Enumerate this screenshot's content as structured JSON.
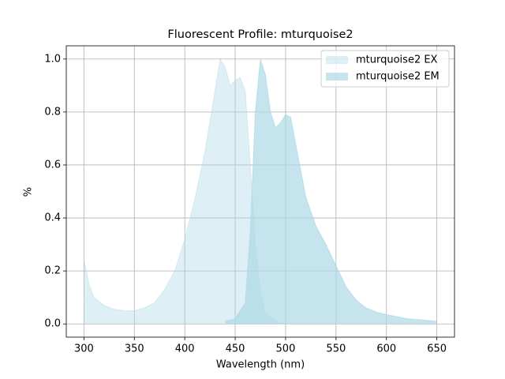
{
  "chart_data": {
    "type": "area",
    "title": "Fluorescent Profile: mturquoise2",
    "x_label": "Wavelength (nm)",
    "y_label": "%",
    "xlim": [
      282.5,
      667.5
    ],
    "ylim": [
      -0.05,
      1.05
    ],
    "xticks": [
      300,
      350,
      400,
      450,
      500,
      550,
      600,
      650
    ],
    "yticks": [
      {
        "value": 0,
        "label": "0.0"
      },
      0.2,
      0.4,
      0.6,
      0.8,
      {
        "value": 1,
        "label": "1.0"
      }
    ],
    "grid": true,
    "legend": "upper right",
    "series": [
      {
        "name": "mturquoise2 EX",
        "color": "#add8e6",
        "opacity": 0.4,
        "x": [
          300,
          305,
          310,
          320,
          330,
          340,
          350,
          360,
          370,
          380,
          390,
          400,
          410,
          420,
          430,
          435,
          440,
          445,
          450,
          455,
          460,
          465,
          470,
          475,
          480,
          490,
          500
        ],
        "values": [
          0.24,
          0.15,
          0.1,
          0.07,
          0.055,
          0.05,
          0.05,
          0.06,
          0.08,
          0.13,
          0.2,
          0.32,
          0.47,
          0.65,
          0.88,
          1.0,
          0.97,
          0.9,
          0.92,
          0.93,
          0.88,
          0.6,
          0.3,
          0.12,
          0.04,
          0.01,
          0
        ]
      },
      {
        "name": "mturquoise2 EM",
        "color": "#add8e6",
        "opacity": 0.7,
        "x": [
          440,
          450,
          460,
          465,
          470,
          475,
          480,
          485,
          490,
          495,
          500,
          505,
          510,
          520,
          530,
          540,
          550,
          560,
          570,
          580,
          590,
          600,
          620,
          650
        ],
        "values": [
          0.01,
          0.02,
          0.08,
          0.35,
          0.8,
          1.0,
          0.94,
          0.8,
          0.74,
          0.76,
          0.79,
          0.78,
          0.68,
          0.48,
          0.37,
          0.3,
          0.22,
          0.14,
          0.09,
          0.06,
          0.045,
          0.035,
          0.02,
          0.01
        ]
      }
    ]
  }
}
